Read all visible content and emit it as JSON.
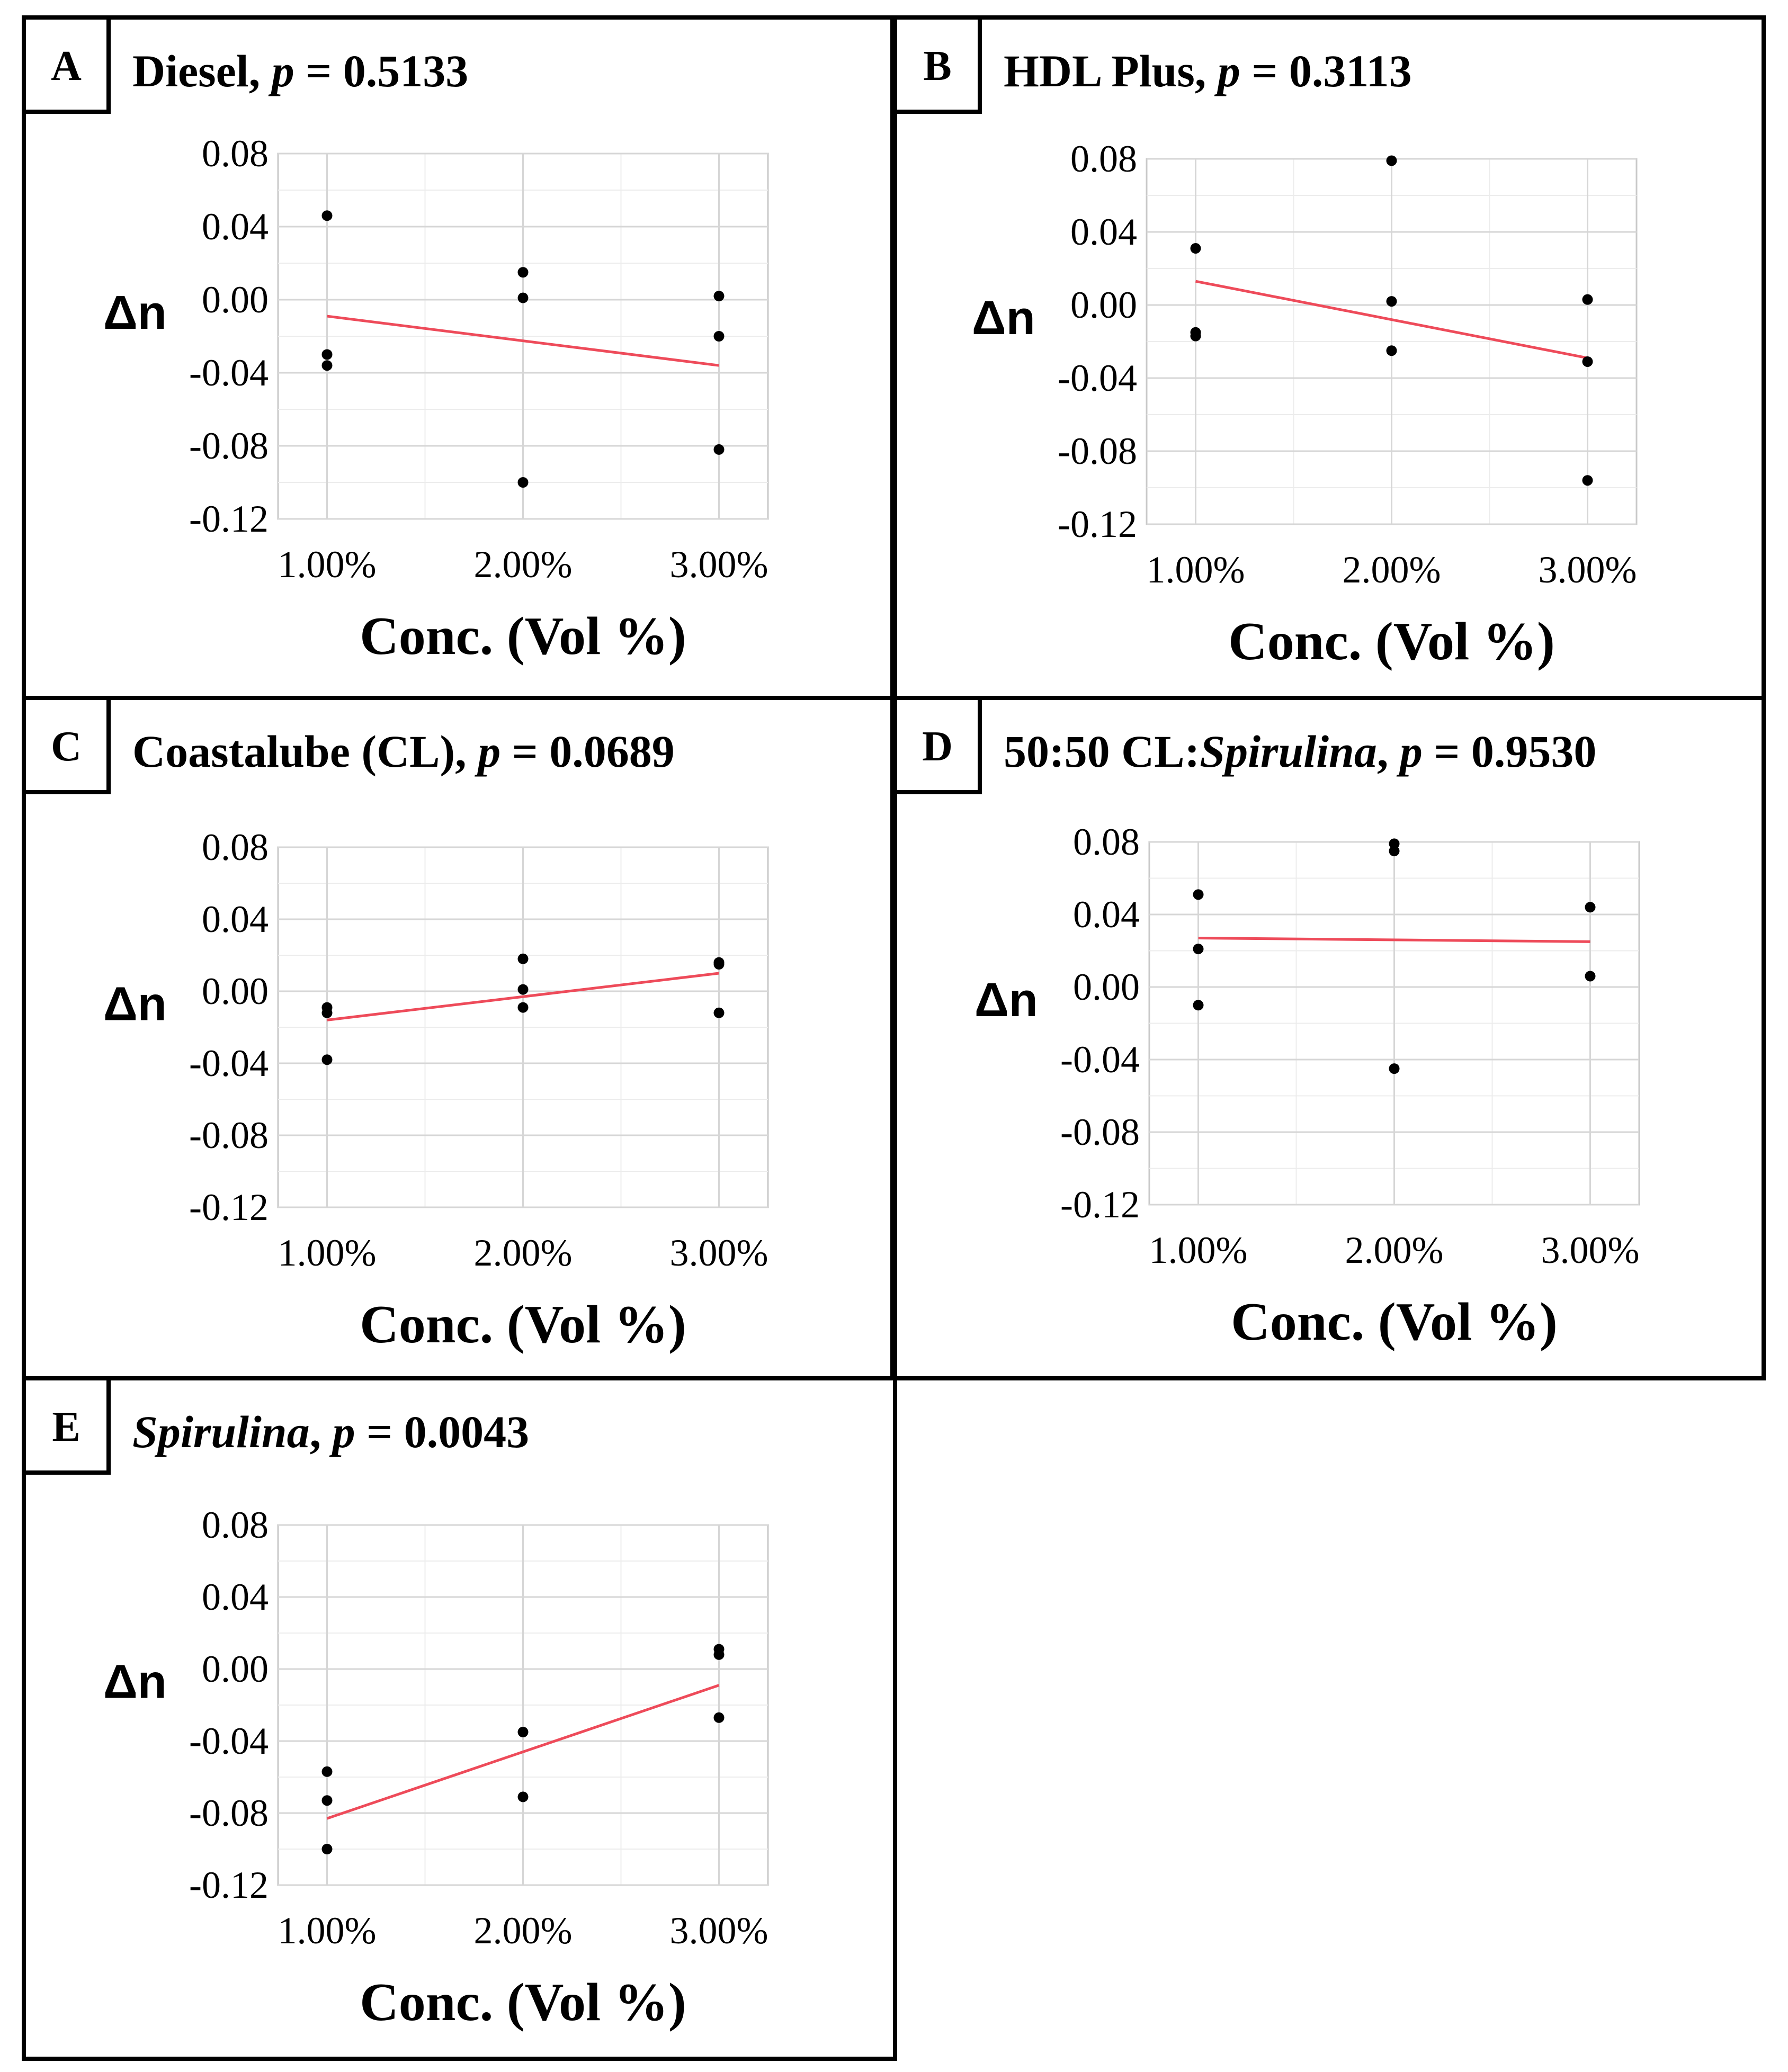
{
  "figure": {
    "line_color": "#ee4b5a",
    "point_color": "#000000"
  },
  "chart_data": [
    {
      "type": "scatter",
      "panel": "A",
      "title_plain": "Diesel, ",
      "title_italic": "",
      "p_label": "p",
      "p_value": " = 0.5133",
      "xlabel": "Conc. (Vol %)",
      "ylabel": "Δn",
      "categories": [
        "1.00%",
        "2.00%",
        "3.00%"
      ],
      "y_ticks": [
        "0.08",
        "0.04",
        "0.00",
        "-0.04",
        "-0.08",
        "-0.12"
      ],
      "ylim": [
        -0.12,
        0.08
      ],
      "grid": true,
      "points": [
        [
          1,
          0.046
        ],
        [
          1,
          -0.03
        ],
        [
          1,
          -0.036
        ],
        [
          2,
          0.015
        ],
        [
          2,
          0.001
        ],
        [
          2,
          -0.1
        ],
        [
          3,
          0.002
        ],
        [
          3,
          -0.02
        ],
        [
          3,
          -0.082
        ]
      ],
      "fit": [
        [
          1,
          -0.009
        ],
        [
          3,
          -0.036
        ]
      ]
    },
    {
      "type": "scatter",
      "panel": "B",
      "title_plain": "HDL Plus, ",
      "title_italic": "",
      "p_label": "p",
      "p_value": " = 0.3113",
      "xlabel": "Conc. (Vol %)",
      "ylabel": "Δn",
      "categories": [
        "1.00%",
        "2.00%",
        "3.00%"
      ],
      "y_ticks": [
        "0.08",
        "0.04",
        "0.00",
        "-0.04",
        "-0.08",
        "-0.12"
      ],
      "ylim": [
        -0.12,
        0.08
      ],
      "grid": true,
      "points": [
        [
          1,
          0.031
        ],
        [
          1,
          -0.015
        ],
        [
          1,
          -0.017
        ],
        [
          2,
          0.079
        ],
        [
          2,
          0.002
        ],
        [
          2,
          -0.025
        ],
        [
          3,
          0.003
        ],
        [
          3,
          -0.031
        ],
        [
          3,
          -0.096
        ]
      ],
      "fit": [
        [
          1,
          0.013
        ],
        [
          3,
          -0.029
        ]
      ]
    },
    {
      "type": "scatter",
      "panel": "C",
      "title_plain": "Coastalube (CL), ",
      "title_italic": "",
      "p_label": "p",
      "p_value": " = 0.0689",
      "xlabel": "Conc. (Vol %)",
      "ylabel": "Δn",
      "categories": [
        "1.00%",
        "2.00%",
        "3.00%"
      ],
      "y_ticks": [
        "0.08",
        "0.04",
        "0.00",
        "-0.04",
        "-0.08",
        "-0.12"
      ],
      "ylim": [
        -0.12,
        0.08
      ],
      "grid": true,
      "points": [
        [
          1,
          -0.009
        ],
        [
          1,
          -0.012
        ],
        [
          1,
          -0.038
        ],
        [
          2,
          0.018
        ],
        [
          2,
          0.001
        ],
        [
          2,
          -0.009
        ],
        [
          3,
          0.016
        ],
        [
          3,
          0.015
        ],
        [
          3,
          -0.012
        ]
      ],
      "fit": [
        [
          1,
          -0.016
        ],
        [
          3,
          0.01
        ]
      ]
    },
    {
      "type": "scatter",
      "panel": "D",
      "title_plain": "50:50 CL:",
      "title_italic": "Spirulina",
      "p_label": "p",
      "p_value": " = 0.9530",
      "xlabel": "Conc. (Vol %)",
      "ylabel": "Δn",
      "categories": [
        "1.00%",
        "2.00%",
        "3.00%"
      ],
      "y_ticks": [
        "0.08",
        "0.04",
        "0.00",
        "-0.04",
        "-0.08",
        "-0.12"
      ],
      "ylim": [
        -0.12,
        0.08
      ],
      "grid": true,
      "points": [
        [
          1,
          0.051
        ],
        [
          1,
          0.021
        ],
        [
          1,
          -0.01
        ],
        [
          2,
          0.079
        ],
        [
          2,
          0.075
        ],
        [
          2,
          -0.045
        ],
        [
          3,
          0.044
        ],
        [
          3,
          0.006
        ]
      ],
      "fit": [
        [
          1,
          0.027
        ],
        [
          3,
          0.025
        ]
      ]
    },
    {
      "type": "scatter",
      "panel": "E",
      "title_plain": "",
      "title_italic": "Spirulina",
      "p_label": "p",
      "p_value": " = 0.0043",
      "xlabel": "Conc. (Vol %)",
      "ylabel": "Δn",
      "categories": [
        "1.00%",
        "2.00%",
        "3.00%"
      ],
      "y_ticks": [
        "0.08",
        "0.04",
        "0.00",
        "-0.04",
        "-0.08",
        "-0.12"
      ],
      "ylim": [
        -0.12,
        0.08
      ],
      "grid": true,
      "points": [
        [
          1,
          -0.057
        ],
        [
          1,
          -0.073
        ],
        [
          1,
          -0.1
        ],
        [
          2,
          -0.035
        ],
        [
          2,
          -0.071
        ],
        [
          3,
          0.011
        ],
        [
          3,
          0.008
        ],
        [
          3,
          -0.027
        ]
      ],
      "fit": [
        [
          1,
          -0.083
        ],
        [
          3,
          -0.009
        ]
      ]
    }
  ]
}
